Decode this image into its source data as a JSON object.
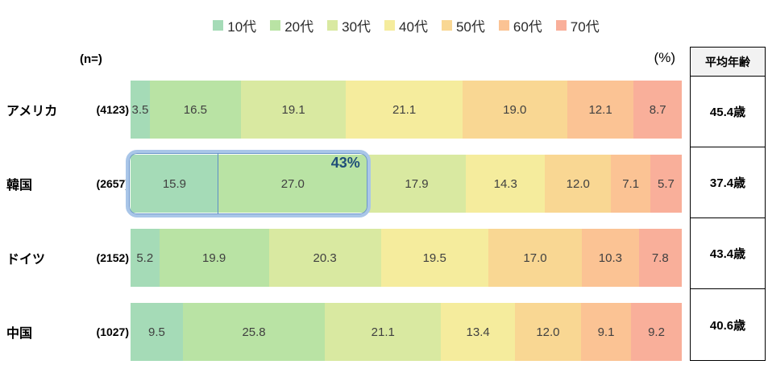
{
  "colors": {
    "segments": [
      "#a5dbb7",
      "#b9e3a4",
      "#d9e9a1",
      "#f5ec9d",
      "#f9d793",
      "#fbc394",
      "#f9af9a"
    ],
    "highlight_border": "#a9c6e8",
    "highlight_inner_line": "#6b96c9",
    "highlight_text": "#1f4e79",
    "bar_text": "#404040",
    "table_header_bg": "#f2f2f2"
  },
  "labels": {
    "n_header": "(n=)",
    "pct_header": "(%)",
    "avg_header": "平均年齢"
  },
  "legend": [
    {
      "label": "10代"
    },
    {
      "label": "20代"
    },
    {
      "label": "30代"
    },
    {
      "label": "40代"
    },
    {
      "label": "50代"
    },
    {
      "label": "60代"
    },
    {
      "label": "70代"
    }
  ],
  "chart_data": {
    "type": "bar",
    "stacked": true,
    "orientation": "horizontal",
    "unit": "%",
    "series_labels": [
      "10代",
      "20代",
      "30代",
      "40代",
      "50代",
      "60代",
      "70代"
    ],
    "legend_position": "top",
    "rows": [
      {
        "country": "アメリカ",
        "n": "(4123)",
        "values": [
          3.5,
          16.5,
          19.1,
          21.1,
          19.0,
          12.1,
          8.7
        ],
        "avg": "45.4歳"
      },
      {
        "country": "韓国",
        "n": "(2657)",
        "values": [
          15.9,
          27.0,
          17.9,
          14.3,
          12.0,
          7.1,
          5.7
        ],
        "avg": "37.4歳"
      },
      {
        "country": "ドイツ",
        "n": "(2152)",
        "values": [
          5.2,
          19.9,
          20.3,
          19.5,
          17.0,
          10.3,
          7.8
        ],
        "avg": "43.4歳"
      },
      {
        "country": "中国",
        "n": "(1027)",
        "values": [
          9.5,
          25.8,
          21.1,
          13.4,
          12.0,
          9.1,
          9.2
        ],
        "avg": "40.6歳"
      }
    ],
    "annotation": {
      "row_index": 1,
      "segment_indices": [
        0,
        1
      ],
      "label": "43%"
    }
  }
}
